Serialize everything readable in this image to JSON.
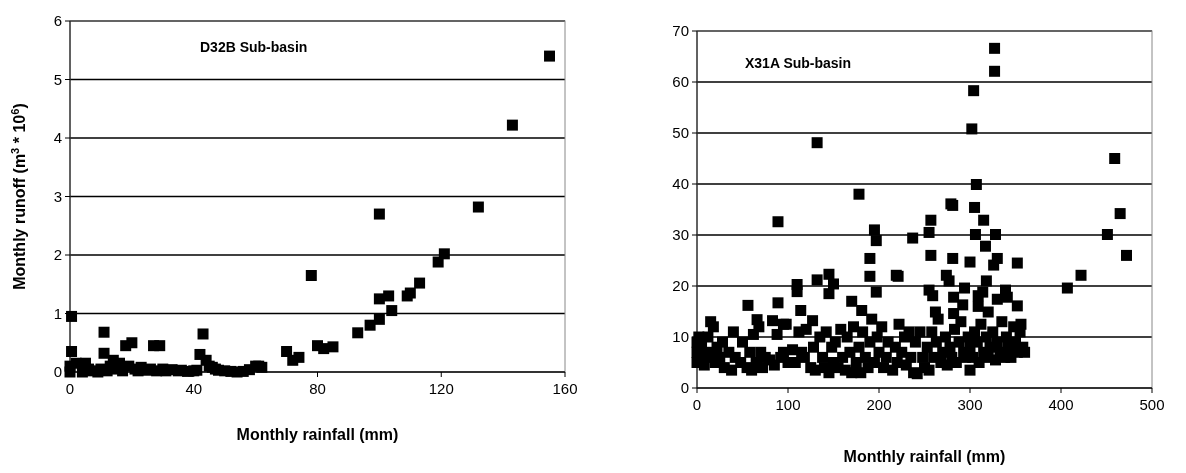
{
  "chart_data": [
    {
      "type": "scatter",
      "title": "D32B Sub-basin",
      "xlabel": "Monthly rainfall (mm)",
      "ylabel": "Monthly runoff (m$^{3}$ * 10$^{6}$)",
      "xlim": [
        0,
        160
      ],
      "xticks": [
        0,
        40,
        80,
        120,
        160
      ],
      "ylim": [
        0,
        6
      ],
      "yticks": [
        0,
        1,
        2,
        3,
        4,
        5,
        6
      ],
      "grid": "y",
      "marker": "square",
      "series": [
        {
          "color": "#000000",
          "x": [
            0.5,
            0.5,
            0,
            2,
            5,
            11,
            11,
            14,
            18,
            20,
            27,
            29,
            42,
            43,
            44,
            46,
            60,
            62,
            70,
            72,
            74,
            78,
            80,
            82,
            85,
            93,
            97,
            100,
            100,
            100,
            103,
            104,
            109,
            110,
            113,
            119,
            121,
            132,
            143,
            155,
            0,
            4,
            6,
            7,
            9,
            10,
            12,
            13,
            15,
            16,
            17,
            19,
            21,
            22,
            23,
            25,
            26,
            28,
            30,
            31,
            33,
            35,
            36,
            38,
            40,
            41,
            45,
            47,
            48,
            50,
            52,
            54,
            56,
            58,
            61
          ],
          "values": [
            0.95,
            0.35,
            0.1,
            0.15,
            0.15,
            0.68,
            0.32,
            0.2,
            0.45,
            0.5,
            0.45,
            0.45,
            0.3,
            0.65,
            0.2,
            0.08,
            0.1,
            0.08,
            0.35,
            0.2,
            0.25,
            1.65,
            0.45,
            0.4,
            0.43,
            0.67,
            0.8,
            0.9,
            1.25,
            2.7,
            1.3,
            1.05,
            1.3,
            1.35,
            1.52,
            1.88,
            2.02,
            2.82,
            4.22,
            5.4,
            0,
            0,
            0.05,
            0.02,
            0,
            0.05,
            0.02,
            0.1,
            0.05,
            0.15,
            0.02,
            0.1,
            0.05,
            0.02,
            0.08,
            0.03,
            0.05,
            0.02,
            0.05,
            0.02,
            0.04,
            0.02,
            0.03,
            0.01,
            0.02,
            0.03,
            0.1,
            0.05,
            0.03,
            0.02,
            0.01,
            0,
            0.01,
            0.04,
            0.1
          ]
        }
      ]
    },
    {
      "type": "scatter",
      "title": "X31A Sub-basin",
      "xlabel": "Monthly rainfall (mm)",
      "xlim": [
        0,
        500
      ],
      "xticks": [
        0,
        100,
        200,
        300,
        400,
        500
      ],
      "ylim": [
        0,
        70
      ],
      "yticks": [
        0,
        10,
        20,
        30,
        40,
        50,
        60,
        70
      ],
      "grid": "y",
      "marker": "square",
      "series": [
        {
          "color": "#000000",
          "x": [
            327,
            327,
            304,
            302,
            132,
            459,
            307,
            178,
            89,
            279,
            281,
            305,
            465,
            315,
            257,
            195,
            197,
            237,
            255,
            306,
            328,
            451,
            317,
            472,
            257,
            190,
            281,
            300,
            330,
            352,
            326,
            422,
            407,
            132,
            145,
            150,
            145,
            110,
            110,
            190,
            219,
            221,
            197,
            274,
            277,
            255,
            259,
            294,
            318,
            314,
            339,
            341,
            309,
            282,
            56,
            89,
            114,
            170,
            181,
            352,
            330,
            262,
            282,
            292,
            309,
            320,
            15,
            66,
            83,
            127,
            95,
            356,
            0,
            0,
            0,
            2,
            5,
            8,
            10,
            12,
            15,
            18,
            20,
            22,
            25,
            28,
            30,
            35,
            38,
            40,
            42,
            48,
            50,
            55,
            58,
            60,
            62,
            65,
            68,
            70,
            72,
            75,
            80,
            85,
            88,
            92,
            95,
            98,
            100,
            105,
            108,
            112,
            115,
            118,
            120,
            125,
            128,
            130,
            135,
            138,
            140,
            142,
            145,
            148,
            150,
            152,
            155,
            158,
            160,
            163,
            165,
            168,
            170,
            172,
            175,
            178,
            180,
            182,
            185,
            188,
            190,
            192,
            195,
            198,
            200,
            203,
            205,
            208,
            210,
            215,
            218,
            220,
            222,
            225,
            228,
            230,
            233,
            235,
            238,
            240,
            242,
            245,
            248,
            250,
            253,
            255,
            258,
            260,
            263,
            265,
            268,
            270,
            273,
            275,
            278,
            280,
            283,
            285,
            288,
            290,
            293,
            295,
            298,
            300,
            300,
            303,
            305,
            308,
            310,
            312,
            315,
            318,
            320,
            322,
            325,
            328,
            330,
            333,
            335,
            338,
            340,
            342,
            345,
            348,
            350,
            352,
            355,
            358,
            360
          ],
          "values": [
            66.6,
            62.1,
            58.3,
            50.8,
            48.1,
            45,
            39.9,
            38,
            32.6,
            36.1,
            35.8,
            35.4,
            34.2,
            32.9,
            32.9,
            31,
            28.9,
            29.4,
            30.5,
            30.1,
            30.1,
            30.1,
            27.8,
            26,
            26,
            25.4,
            25.4,
            24.7,
            25.4,
            24.5,
            24.1,
            22.1,
            19.6,
            21.2,
            22.3,
            20.4,
            18.5,
            20.3,
            18.9,
            21.9,
            22.1,
            21.9,
            18.8,
            22.1,
            21,
            19.2,
            18.1,
            19.6,
            21,
            18.8,
            19.2,
            17.8,
            18.1,
            17.8,
            16.2,
            16.7,
            15.2,
            17,
            15.2,
            16.1,
            17.4,
            14.9,
            14.6,
            16.3,
            16,
            14.9,
            13,
            13.4,
            13.2,
            13.2,
            12.5,
            12.5,
            5,
            7,
            9,
            10,
            8,
            4.5,
            6,
            10,
            7,
            12,
            5,
            8,
            6,
            9,
            4,
            7,
            3.5,
            11,
            6,
            5,
            9,
            4,
            7,
            3.5,
            10.5,
            5,
            12,
            7,
            4,
            6,
            5.5,
            4.5,
            10.5,
            6,
            7,
            12.5,
            5,
            7.5,
            5,
            11,
            7,
            6,
            11.5,
            4,
            8,
            3.5,
            10,
            6,
            4,
            11,
            3,
            8,
            5,
            9,
            4,
            11.5,
            6,
            3.5,
            10,
            7,
            3,
            12,
            5,
            8,
            3,
            11,
            6,
            4,
            9,
            13.5,
            5,
            10,
            7,
            12,
            4,
            6,
            9,
            3.5,
            8,
            5,
            12.5,
            7,
            10,
            4.5,
            11,
            6,
            3,
            9,
            2.8,
            11,
            6,
            4,
            8,
            3.5,
            11,
            6,
            9,
            13.5,
            5,
            7,
            10,
            4.5,
            8,
            6,
            11.5,
            5,
            9,
            13,
            7,
            6,
            10,
            3.5,
            8,
            6,
            11,
            9,
            5,
            12.5,
            7,
            10,
            6,
            8,
            11,
            5.5,
            9,
            7,
            13,
            6,
            10,
            8,
            6,
            12,
            9,
            7,
            11,
            8,
            7
          ]
        }
      ]
    }
  ]
}
